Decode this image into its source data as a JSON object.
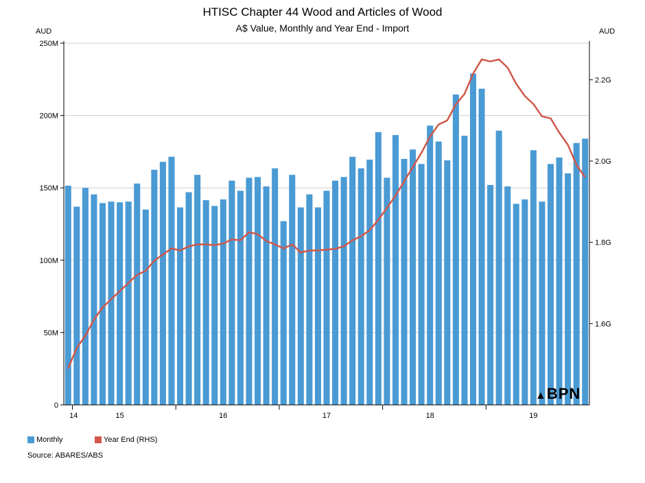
{
  "chart_data": {
    "type": "bar",
    "title": "HTISC Chapter 44 Wood and Articles of Wood",
    "subtitle": "A$ Value, Monthly and Year End - Import",
    "left_axis_unit": "AUD",
    "right_axis_unit": "AUD",
    "ylim_left": [
      0,
      250000000
    ],
    "left_ticks": [
      {
        "value": 0,
        "label": "0"
      },
      {
        "value": 50000000,
        "label": "50M"
      },
      {
        "value": 100000000,
        "label": "100M"
      },
      {
        "value": 150000000,
        "label": "150M"
      },
      {
        "value": 200000000,
        "label": "200M"
      },
      {
        "value": 250000000,
        "label": "250M"
      }
    ],
    "ylim_right": [
      1400000000.0,
      2290000000.0
    ],
    "right_ticks": [
      {
        "value": 1600000000.0,
        "label": "1.6G"
      },
      {
        "value": 1800000000.0,
        "label": "1.8G"
      },
      {
        "value": 2000000000.0,
        "label": "2.0G"
      },
      {
        "value": 2200000000.0,
        "label": "2.2G"
      }
    ],
    "x_year_labels": [
      {
        "label": "14",
        "month_index": 0.5
      },
      {
        "label": "15",
        "month_index": 6.5
      },
      {
        "label": "16",
        "month_index": 18.5
      },
      {
        "label": "17",
        "month_index": 30.5
      },
      {
        "label": "18",
        "month_index": 42.5
      },
      {
        "label": "19",
        "month_index": 54.5
      }
    ],
    "year_boundaries": [
      1,
      13,
      25,
      37,
      49
    ],
    "grid": true,
    "series": [
      {
        "name": "Monthly",
        "type": "bar",
        "axis": "left",
        "color": "#4a9ad4",
        "values": [
          151500000,
          137000000,
          150000000,
          145500000,
          139500000,
          140500000,
          140000000,
          140500000,
          153000000,
          135000000,
          162500000,
          168000000,
          171500000,
          136500000,
          147000000,
          159000000,
          141500000,
          137500000,
          142000000,
          155000000,
          148000000,
          157000000,
          157500000,
          151000000,
          163500000,
          127000000,
          159000000,
          136500000,
          145500000,
          136500000,
          148000000,
          155000000,
          157500000,
          171500000,
          163500000,
          169500000,
          188500000,
          157000000,
          186500000,
          170000000,
          176500000,
          166500000,
          193000000,
          182000000,
          169000000,
          214500000,
          186000000,
          229000000,
          218500000,
          152000000,
          189500000,
          151000000,
          139000000,
          142000000,
          176000000,
          140500000,
          166500000,
          171000000,
          160000000,
          181000000,
          184000000
        ]
      },
      {
        "name": "Year End (RHS)",
        "type": "line",
        "axis": "right",
        "color": "#d0574a",
        "values": [
          1490000000.0,
          1540000000.0,
          1570000000.0,
          1610000000.0,
          1640000000.0,
          1660000000.0,
          1680000000.0,
          1700000000.0,
          1720000000.0,
          1730000000.0,
          1755000000.0,
          1770000000.0,
          1785000000.0,
          1780000000.0,
          1790000000.0,
          1795000000.0,
          1795000000.0,
          1793000000.0,
          1797000000.0,
          1807000000.0,
          1805000000.0,
          1825000000.0,
          1820000000.0,
          1803000000.0,
          1795000000.0,
          1785000000.0,
          1795000000.0,
          1775000000.0,
          1780000000.0,
          1780000000.0,
          1782000000.0,
          1784000000.0,
          1790000000.0,
          1805000000.0,
          1815000000.0,
          1830000000.0,
          1855000000.0,
          1885000000.0,
          1915000000.0,
          1950000000.0,
          1985000000.0,
          2020000000.0,
          2060000000.0,
          2090000000.0,
          2100000000.0,
          2140000000.0,
          2165000000.0,
          2215000000.0,
          2250000000.0,
          2245000000.0,
          2250000000.0,
          2230000000.0,
          2190000000.0,
          2160000000.0,
          2140000000.0,
          2110000000.0,
          2105000000.0,
          2070000000.0,
          2040000000.0,
          1990000000.0,
          1960000000.0
        ]
      }
    ]
  },
  "legend": {
    "monthly_label": "Monthly",
    "monthly_color": "#4a9ad4",
    "yearend_label": "Year End (RHS)",
    "yearend_color": "#d0574a"
  },
  "source": "Source: ABARES/ABS",
  "watermark": {
    "text": "BPN",
    "color": "#4a9ad4"
  }
}
